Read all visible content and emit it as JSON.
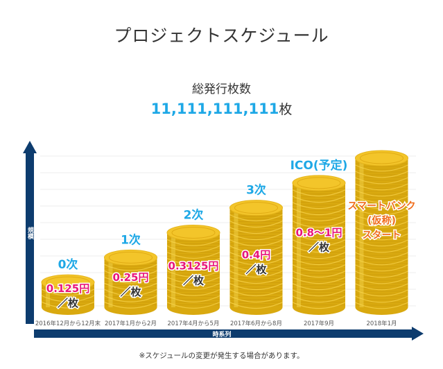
{
  "title": "プロジェクトスケジュール",
  "issue": {
    "label": "総発行枚数",
    "value": "11,111,111,111",
    "unit": "枚"
  },
  "footnote": "※スケジュールの変更が発生する場合があります。",
  "colors": {
    "axis": "#0d3c6e",
    "stage_label": "#1ea8e6",
    "price_text": "#e8157a",
    "final_text": "#f06b1a",
    "coin_edge": "#d9a90f",
    "coin_face": "#f3c52a"
  },
  "chart_data": {
    "type": "bar",
    "ylabel": "規模",
    "xlabel": "時系列",
    "categories": [
      "2016年12月から12月末",
      "2017年1月から2月",
      "2017年4月から5月",
      "2017年6月から8月",
      "2017年9月",
      "2018年1月"
    ],
    "stages": [
      "0次",
      "1次",
      "2次",
      "3次",
      "ICO(予定)",
      ""
    ],
    "prices": [
      {
        "amount": "0.125円",
        "per": "／枚"
      },
      {
        "amount": "0.25円",
        "per": "／枚"
      },
      {
        "amount": "0.3125円",
        "per": "／枚"
      },
      {
        "amount": "0.4円",
        "per": "／枚"
      },
      {
        "amount": "0.8〜1円",
        "per": "／枚"
      },
      {
        "amount": "スマートバンク",
        "per": "(仮称)",
        "extra": "スタート"
      }
    ],
    "values": [
      1,
      2,
      3,
      4,
      5,
      6
    ],
    "ylim": [
      0,
      6
    ],
    "grid": true
  }
}
